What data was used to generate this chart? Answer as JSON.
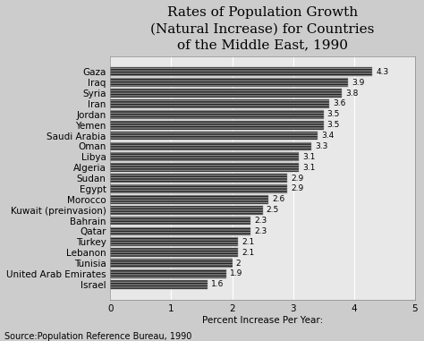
{
  "title": "Rates of Population Growth\n(Natural Increase) for Countries\nof the Middle East, 1990",
  "xlabel": "Percent Increase Per Year:",
  "source": "Source:Population Reference Bureau, 1990",
  "countries": [
    "Gaza",
    "Iraq",
    "Syria",
    "Iran",
    "Jordan",
    "Yemen",
    "Saudi Arabia",
    "Oman",
    "Libya",
    "Algeria",
    "Sudan",
    "Egypt",
    "Morocco",
    "Kuwait (preinvasion)",
    "Bahrain",
    "Qatar",
    "Turkey",
    "Lebanon",
    "Tunisia",
    "United Arab Emirates",
    "Israel"
  ],
  "values": [
    4.3,
    3.9,
    3.8,
    3.6,
    3.5,
    3.5,
    3.4,
    3.3,
    3.1,
    3.1,
    2.9,
    2.9,
    2.6,
    2.5,
    2.3,
    2.3,
    2.1,
    2.1,
    2.0,
    1.9,
    1.6
  ],
  "bar_color": "#222222",
  "bar_hatch": "-----",
  "bar_edge_color": "#888888",
  "bg_color": "#cccccc",
  "plot_bg_color": "#e8e8e8",
  "xlim": [
    0,
    5
  ],
  "xticks": [
    0,
    1,
    2,
    3,
    4,
    5
  ],
  "title_fontsize": 11,
  "label_fontsize": 7.5,
  "value_fontsize": 6.5,
  "source_fontsize": 7
}
